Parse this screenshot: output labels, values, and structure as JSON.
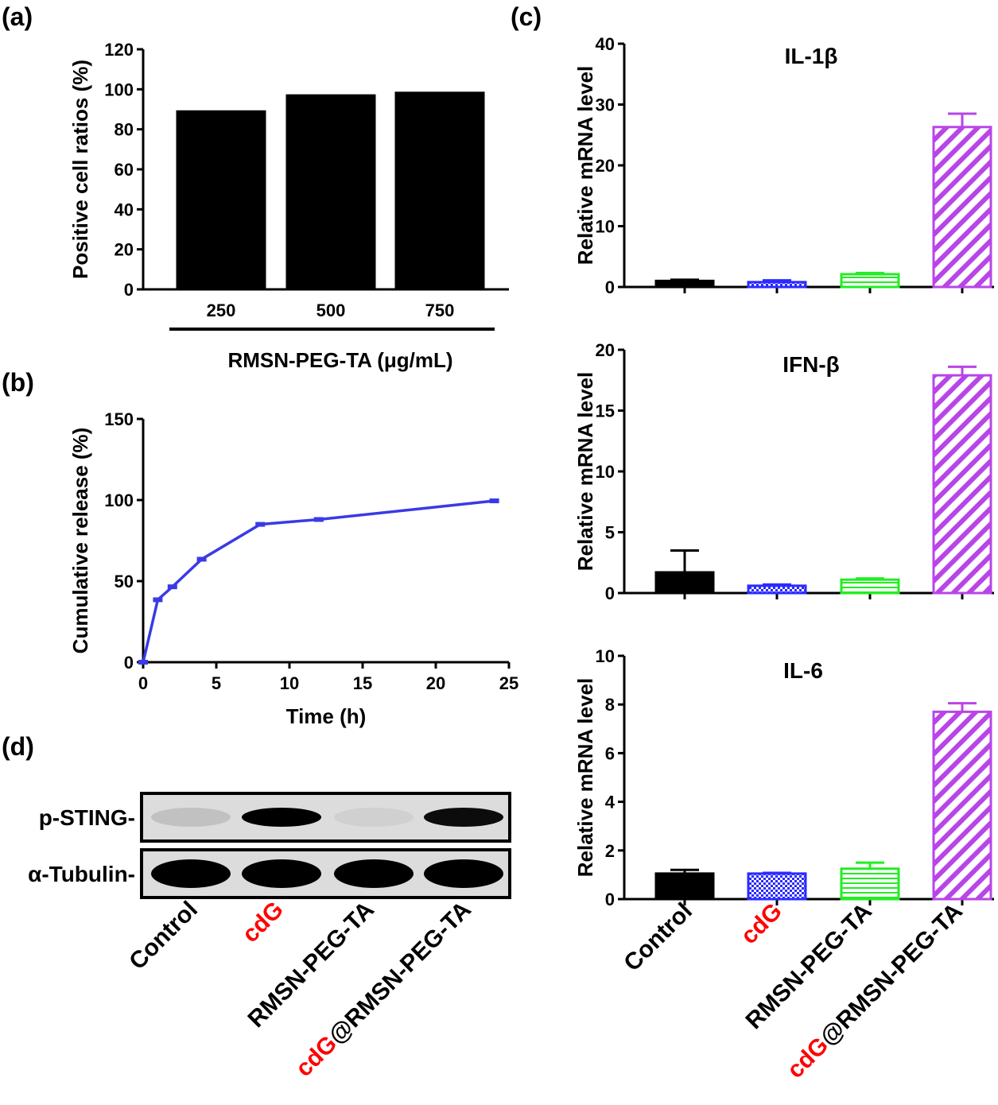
{
  "panels": {
    "a": {
      "label": "(a)"
    },
    "b": {
      "label": "(b)"
    },
    "c": {
      "label": "(c)"
    },
    "d": {
      "label": "(d)"
    }
  },
  "colors": {
    "black": "#000000",
    "blue": "#2b2bff",
    "green": "#22ee22",
    "purple": "#b845e8",
    "red": "#ff0000",
    "line": "#3a3ae6"
  },
  "chart_data": [
    {
      "id": "a",
      "type": "bar",
      "categories": [
        "250",
        "500",
        "750"
      ],
      "values": [
        89.5,
        97.5,
        98.8
      ],
      "ylabel": "Positive cell ratios (%)",
      "xlabel": "RMSN-PEG-TA (μg/mL)",
      "ylim": [
        0,
        120
      ],
      "yticks": [
        0,
        20,
        40,
        60,
        80,
        100,
        120
      ],
      "color": "#000000"
    },
    {
      "id": "b",
      "type": "line",
      "x": [
        0,
        1,
        2,
        4,
        8,
        12,
        24
      ],
      "y": [
        0,
        38.5,
        46.5,
        63.5,
        85,
        88,
        99.5
      ],
      "xlabel": "Time (h)",
      "ylabel": "Cumulative release (%)",
      "xlim": [
        0,
        25
      ],
      "ylim": [
        0,
        150
      ],
      "xticks": [
        0,
        5,
        10,
        15,
        20,
        25
      ],
      "yticks": [
        0,
        50,
        100,
        150
      ],
      "color": "#3a3ae6"
    },
    {
      "id": "c1",
      "type": "bar",
      "title": "IL-1β",
      "categories": [
        "Control",
        "cdG",
        "RMSN-PEG-TA",
        "cdG@RMSN-PEG-TA"
      ],
      "values": [
        1.0,
        0.8,
        2.1,
        26.3
      ],
      "errors": [
        0.2,
        0.3,
        0.2,
        2.2
      ],
      "ylabel": "Relative mRNA level",
      "ylim": [
        0,
        40
      ],
      "yticks": [
        0,
        10,
        20,
        30,
        40
      ]
    },
    {
      "id": "c2",
      "type": "bar",
      "title": "IFN-β",
      "categories": [
        "Control",
        "cdG",
        "RMSN-PEG-TA",
        "cdG@RMSN-PEG-TA"
      ],
      "values": [
        1.7,
        0.6,
        1.1,
        17.9
      ],
      "errors": [
        1.8,
        0.1,
        0.1,
        0.7
      ],
      "ylabel": "Relative mRNA level",
      "ylim": [
        0,
        20
      ],
      "yticks": [
        0,
        5,
        10,
        15,
        20
      ]
    },
    {
      "id": "c3",
      "type": "bar",
      "title": "IL-6",
      "categories": [
        "Control",
        "cdG",
        "RMSN-PEG-TA",
        "cdG@RMSN-PEG-TA"
      ],
      "values": [
        1.05,
        1.05,
        1.25,
        7.7
      ],
      "errors": [
        0.15,
        0.03,
        0.25,
        0.35
      ],
      "ylabel": "Relative mRNA level",
      "ylim": [
        0,
        10
      ],
      "yticks": [
        0,
        2,
        4,
        6,
        8,
        10
      ]
    }
  ],
  "western_blot": {
    "rows": [
      {
        "label": "p-STING-",
        "intensities": [
          0.12,
          1.0,
          0.05,
          0.95
        ]
      },
      {
        "label": "α-Tubulin-",
        "intensities": [
          1.0,
          1.0,
          1.0,
          1.0
        ]
      }
    ]
  },
  "group_labels": [
    {
      "plain": "Control",
      "red": ""
    },
    {
      "plain": "",
      "red": "cdG"
    },
    {
      "plain": "RMSN-PEG-TA",
      "red": ""
    },
    {
      "plain": "@RMSN-PEG-TA",
      "red": "cdG"
    }
  ]
}
